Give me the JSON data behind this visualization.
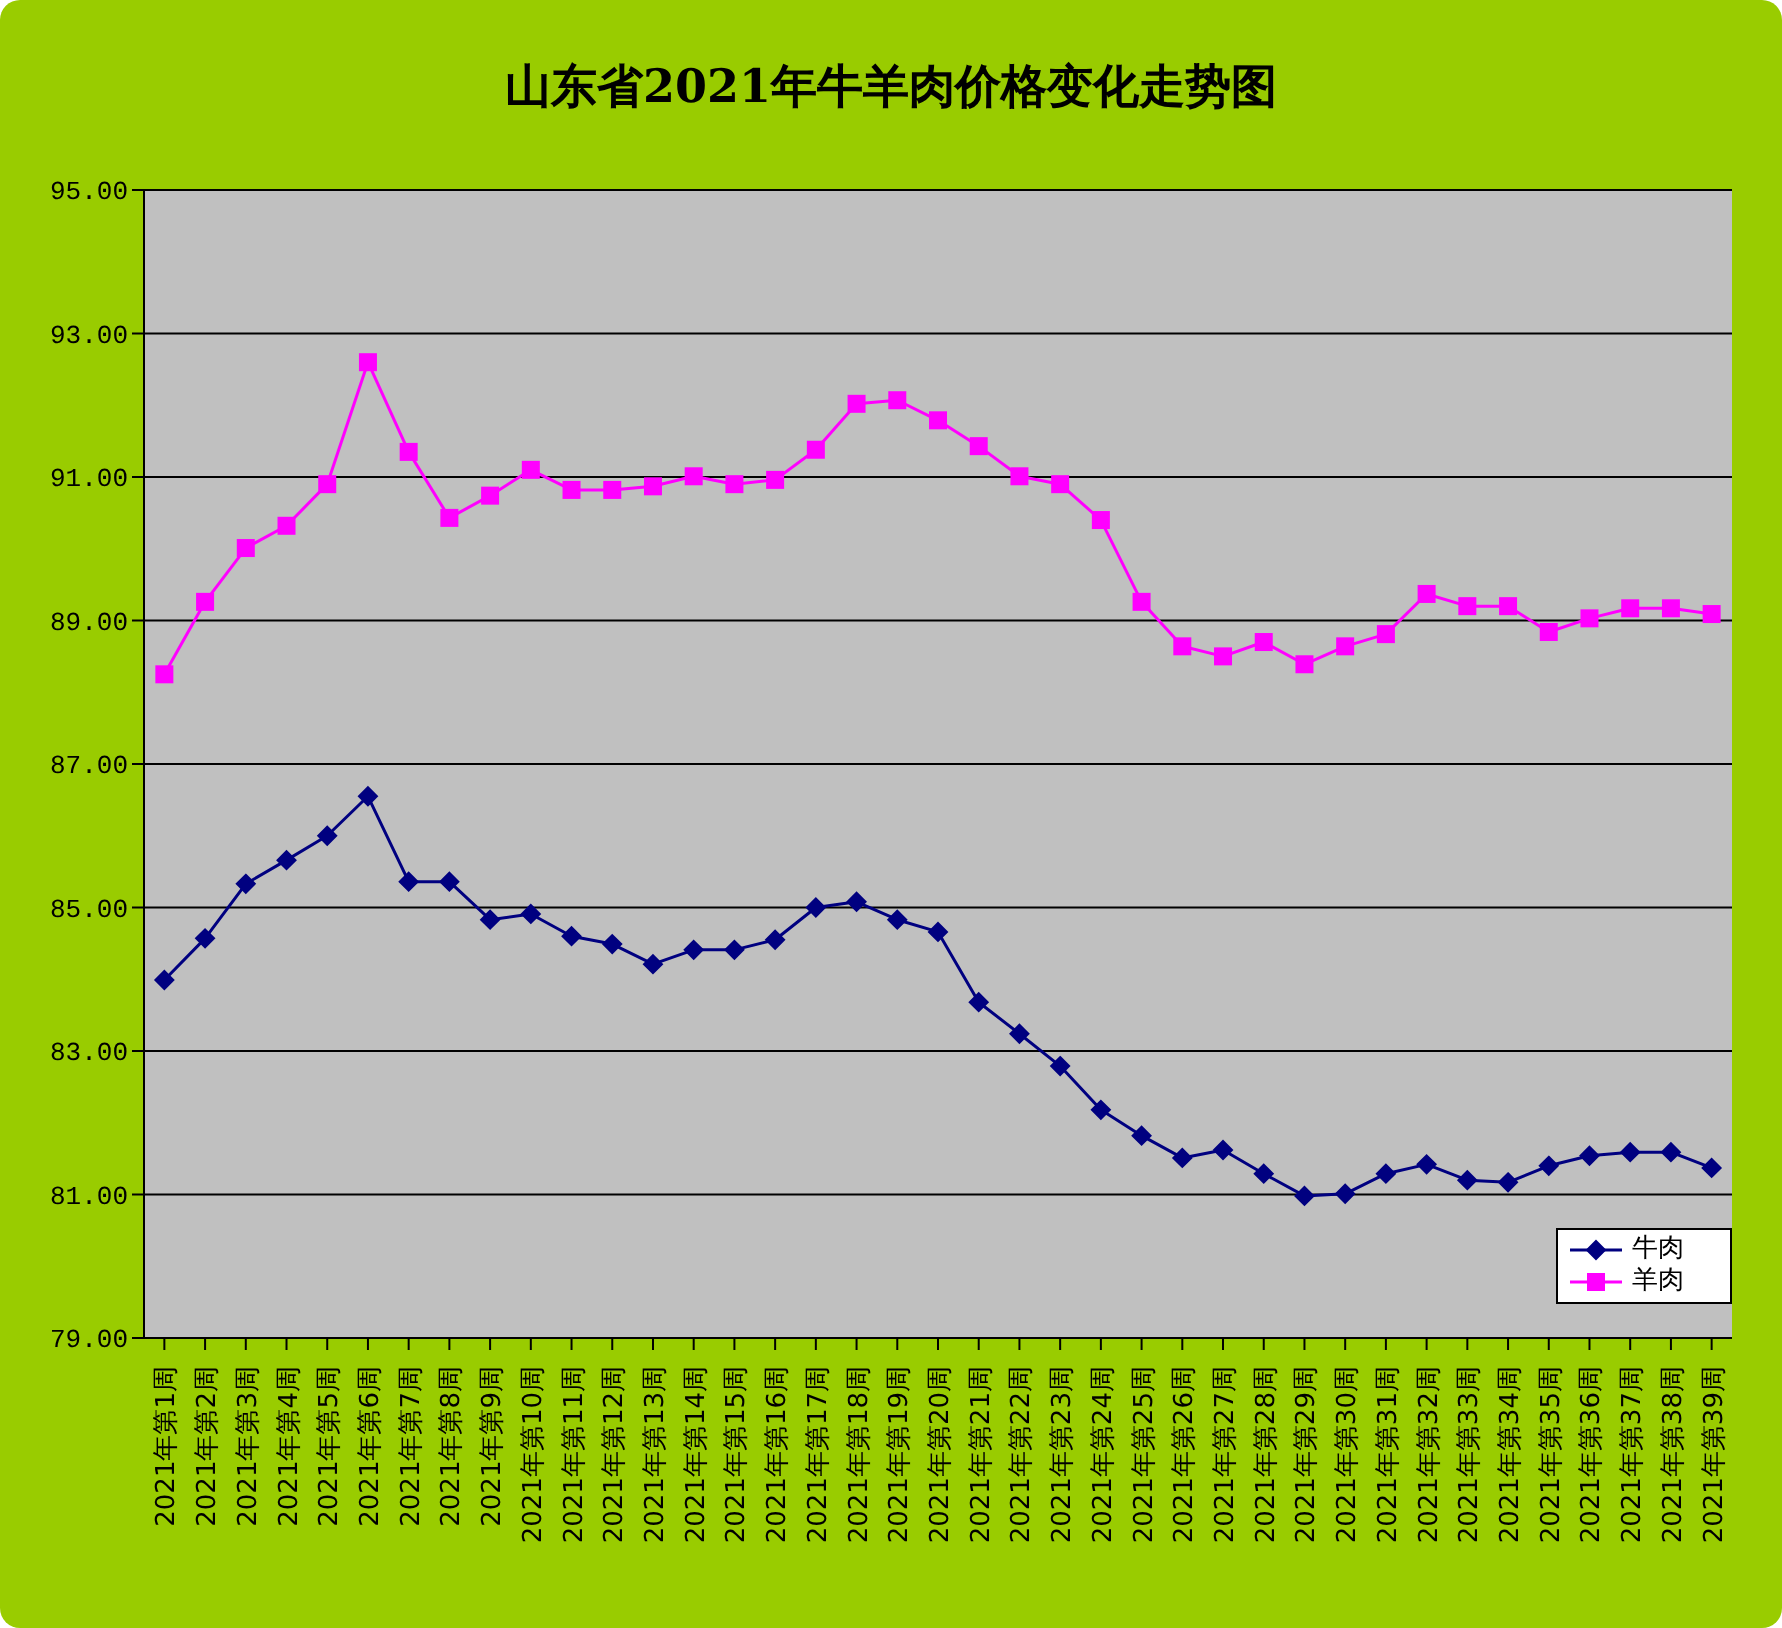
{
  "chart_data": {
    "type": "line",
    "title": "山东省2021年牛羊肉价格变化走势图",
    "categories": [
      "2021年第1周",
      "2021年第2周",
      "2021年第3周",
      "2021年第4周",
      "2021年第5周",
      "2021年第6周",
      "2021年第7周",
      "2021年第8周",
      "2021年第9周",
      "2021年第10周",
      "2021年第11周",
      "2021年第12周",
      "2021年第13周",
      "2021年第14周",
      "2021年第15周",
      "2021年第16周",
      "2021年第17周",
      "2021年第18周",
      "2021年第19周",
      "2021年第20周",
      "2021年第21周",
      "2021年第22周",
      "2021年第23周",
      "2021年第24周",
      "2021年第25周",
      "2021年第26周",
      "2021年第27周",
      "2021年第28周",
      "2021年第29周",
      "2021年第30周",
      "2021年第31周",
      "2021年第32周",
      "2021年第33周",
      "2021年第34周",
      "2021年第35周",
      "2021年第36周",
      "2021年第37周",
      "2021年第38周",
      "2021年第39周"
    ],
    "series": [
      {
        "name": "牛肉",
        "color": "#000080",
        "marker": "diamond",
        "values": [
          83.99,
          84.57,
          85.33,
          85.66,
          86.0,
          86.55,
          85.36,
          85.36,
          84.83,
          84.91,
          84.6,
          84.49,
          84.21,
          84.41,
          84.41,
          84.55,
          85.0,
          85.08,
          84.83,
          84.66,
          83.68,
          83.24,
          82.79,
          82.18,
          81.82,
          81.51,
          81.62,
          81.29,
          80.98,
          81.01,
          81.29,
          81.42,
          81.2,
          81.17,
          81.4,
          81.54,
          81.59,
          81.59,
          81.37
        ]
      },
      {
        "name": "羊肉",
        "color": "#ff00ff",
        "marker": "square",
        "values": [
          88.25,
          89.26,
          90.01,
          90.32,
          90.9,
          92.6,
          91.35,
          90.43,
          90.74,
          91.1,
          90.82,
          90.82,
          90.87,
          91.01,
          90.9,
          90.96,
          91.38,
          92.02,
          92.07,
          91.79,
          91.43,
          91.01,
          90.9,
          90.4,
          89.26,
          88.64,
          88.5,
          88.7,
          88.39,
          88.64,
          88.81,
          89.37,
          89.2,
          89.2,
          88.84,
          89.03,
          89.17,
          89.17,
          89.09
        ]
      }
    ],
    "ylim": [
      79,
      95
    ],
    "yticks": [
      {
        "value": 79,
        "label": "79.00"
      },
      {
        "value": 81,
        "label": "81.00"
      },
      {
        "value": 83,
        "label": "83.00"
      },
      {
        "value": 85,
        "label": "85.00"
      },
      {
        "value": 87,
        "label": "87.00"
      },
      {
        "value": 89,
        "label": "89.00"
      },
      {
        "value": 91,
        "label": "91.00"
      },
      {
        "value": 93,
        "label": "93.00"
      },
      {
        "value": 95,
        "label": "95.00"
      }
    ],
    "grid": "y",
    "legend": "bottom right",
    "line_style": "solid"
  }
}
